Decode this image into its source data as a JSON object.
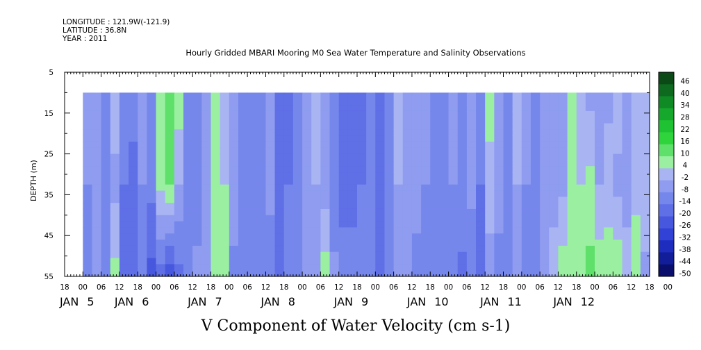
{
  "header": {
    "longitude": "LONGITUDE : 121.9W(-121.9)",
    "latitude": "LATITUDE : 36.8N",
    "year": "YEAR : 2011"
  },
  "chart_data": {
    "type": "heatmap",
    "title": "Hourly Gridded MBARI Mooring M0 Sea Water Temperature and Salinity Observations",
    "xlabel": "V Component of Water Velocity (cm s-1)",
    "ylabel": "DEPTH (m)",
    "x_axis_hours_range": [
      -6,
      186
    ],
    "data_hours_range": [
      0,
      186
    ],
    "y_range": [
      5,
      55
    ],
    "y_ticks": [
      5,
      15,
      25,
      35,
      45,
      55
    ],
    "data_depth_range": [
      10,
      55
    ],
    "hour_tick_labels": [
      "18",
      "00",
      "06",
      "12",
      "18",
      "00",
      "06",
      "12",
      "18",
      "00",
      "06",
      "12",
      "18",
      "00",
      "06",
      "12",
      "18",
      "00",
      "06",
      "12",
      "18",
      "00",
      "06",
      "12",
      "18",
      "00",
      "06",
      "12",
      "18",
      "00",
      "06",
      "12",
      "18",
      "00"
    ],
    "day_labels": [
      {
        "day": "JAN",
        "num": "5",
        "hour": 0
      },
      {
        "day": "JAN",
        "num": "6",
        "hour": 18
      },
      {
        "day": "JAN",
        "num": "7",
        "hour": 42
      },
      {
        "day": "JAN",
        "num": "8",
        "hour": 66
      },
      {
        "day": "JAN",
        "num": "9",
        "hour": 90
      },
      {
        "day": "JAN",
        "num": "10",
        "hour": 114
      },
      {
        "day": "JAN",
        "num": "11",
        "hour": 138
      },
      {
        "day": "JAN",
        "num": "12",
        "hour": 162
      }
    ],
    "colorbar_levels": [
      "46",
      "40",
      "34",
      "28",
      "22",
      "16",
      "10",
      "4",
      "-2",
      "-8",
      "-14",
      "-20",
      "-26",
      "-32",
      "-38",
      "-44",
      "-50"
    ],
    "colorbar_colors": [
      "#0b4a17",
      "#0d6a1e",
      "#108a25",
      "#15a82c",
      "#1ec232",
      "#2fd43c",
      "#5ee06a",
      "#9af0a0",
      "#a9b4f3",
      "#8f9cf0",
      "#7687ec",
      "#5f6fe6",
      "#4758df",
      "#3241d6",
      "#1f2dbf",
      "#121d9a",
      "#0a0f6d"
    ],
    "grid": false,
    "legend": "right",
    "columns": [
      {
        "h": 0,
        "top": -6,
        "mid": -8,
        "bot": -10
      },
      {
        "h": 3,
        "top": -4,
        "mid": -6,
        "bot": -2
      },
      {
        "h": 6,
        "top": -8,
        "mid": -10,
        "bot": -12
      },
      {
        "h": 9,
        "top": 2,
        "mid": -4,
        "bot": 6
      },
      {
        "h": 12,
        "top": -10,
        "mid": -14,
        "bot": -16
      },
      {
        "h": 15,
        "top": -12,
        "mid": -16,
        "bot": -20
      },
      {
        "h": 18,
        "top": -6,
        "mid": -8,
        "bot": -12
      },
      {
        "h": 21,
        "top": -10,
        "mid": -12,
        "bot": -22
      },
      {
        "h": 24,
        "top": 10,
        "mid": 6,
        "bot": -18
      },
      {
        "h": 27,
        "top": 14,
        "mid": 10,
        "bot": -26
      },
      {
        "h": 30,
        "top": 8,
        "mid": -2,
        "bot": -16
      },
      {
        "h": 33,
        "top": -8,
        "mid": -12,
        "bot": -10
      },
      {
        "h": 36,
        "top": -10,
        "mid": -12,
        "bot": -6
      },
      {
        "h": 39,
        "top": -4,
        "mid": -8,
        "bot": -4
      },
      {
        "h": 42,
        "top": 4,
        "mid": 8,
        "bot": 10
      },
      {
        "h": 45,
        "top": 2,
        "mid": 4,
        "bot": 4
      },
      {
        "h": 48,
        "top": -8,
        "mid": -4,
        "bot": -10
      },
      {
        "h": 51,
        "top": -10,
        "mid": -8,
        "bot": -12
      },
      {
        "h": 54,
        "top": -12,
        "mid": -10,
        "bot": -8
      },
      {
        "h": 57,
        "top": -10,
        "mid": -12,
        "bot": -10
      },
      {
        "h": 60,
        "top": -8,
        "mid": -6,
        "bot": -12
      },
      {
        "h": 63,
        "top": -14,
        "mid": -18,
        "bot": -16
      },
      {
        "h": 66,
        "top": -16,
        "mid": -14,
        "bot": -10
      },
      {
        "h": 69,
        "top": -12,
        "mid": -10,
        "bot": -8
      },
      {
        "h": 72,
        "top": -6,
        "mid": -4,
        "bot": -6
      },
      {
        "h": 75,
        "top": 2,
        "mid": -2,
        "bot": -4
      },
      {
        "h": 78,
        "top": -4,
        "mid": -6,
        "bot": 8
      },
      {
        "h": 81,
        "top": -10,
        "mid": -14,
        "bot": -6
      },
      {
        "h": 84,
        "top": -14,
        "mid": -18,
        "bot": -10
      },
      {
        "h": 87,
        "top": -18,
        "mid": -16,
        "bot": -12
      },
      {
        "h": 90,
        "top": -16,
        "mid": -14,
        "bot": -8
      },
      {
        "h": 93,
        "top": -12,
        "mid": -10,
        "bot": -10
      },
      {
        "h": 96,
        "top": -14,
        "mid": -18,
        "bot": -20
      },
      {
        "h": 99,
        "top": -10,
        "mid": -12,
        "bot": -14
      },
      {
        "h": 102,
        "top": 2,
        "mid": -2,
        "bot": -8
      },
      {
        "h": 105,
        "top": -6,
        "mid": -6,
        "bot": -2
      },
      {
        "h": 108,
        "top": -8,
        "mid": -6,
        "bot": -10
      },
      {
        "h": 111,
        "top": -4,
        "mid": -8,
        "bot": -12
      },
      {
        "h": 114,
        "top": -10,
        "mid": -12,
        "bot": -14
      },
      {
        "h": 117,
        "top": -8,
        "mid": -10,
        "bot": -12
      },
      {
        "h": 120,
        "top": -6,
        "mid": -8,
        "bot": -14
      },
      {
        "h": 123,
        "top": -10,
        "mid": -8,
        "bot": -16
      },
      {
        "h": 126,
        "top": -8,
        "mid": -6,
        "bot": -14
      },
      {
        "h": 129,
        "top": -12,
        "mid": -14,
        "bot": -18
      },
      {
        "h": 132,
        "top": 6,
        "mid": 2,
        "bot": -6
      },
      {
        "h": 135,
        "top": -4,
        "mid": -6,
        "bot": -10
      },
      {
        "h": 138,
        "top": -8,
        "mid": -10,
        "bot": -12
      },
      {
        "h": 141,
        "top": 2,
        "mid": -2,
        "bot": -6
      },
      {
        "h": 144,
        "top": -6,
        "mid": -8,
        "bot": -10
      },
      {
        "h": 147,
        "top": -10,
        "mid": -12,
        "bot": -14
      },
      {
        "h": 150,
        "top": -6,
        "mid": -8,
        "bot": -4
      },
      {
        "h": 153,
        "top": -4,
        "mid": -6,
        "bot": 2
      },
      {
        "h": 156,
        "top": -2,
        "mid": -4,
        "bot": 8
      },
      {
        "h": 159,
        "top": 4,
        "mid": 6,
        "bot": 10
      },
      {
        "h": 162,
        "top": 2,
        "mid": 4,
        "bot": 8
      },
      {
        "h": 165,
        "top": -4,
        "mid": 6,
        "bot": 12
      },
      {
        "h": 168,
        "top": -6,
        "mid": -2,
        "bot": 8
      },
      {
        "h": 171,
        "top": -4,
        "mid": 2,
        "bot": 6
      },
      {
        "h": 174,
        "top": 2,
        "mid": -4,
        "bot": 10
      },
      {
        "h": 177,
        "top": -6,
        "mid": -8,
        "bot": 4
      },
      {
        "h": 180,
        "top": 4,
        "mid": 2,
        "bot": 8
      },
      {
        "h": 183,
        "top": -2,
        "mid": 4,
        "bot": -4
      },
      {
        "h": 186,
        "top": 6,
        "mid": 2,
        "bot": -2
      }
    ]
  }
}
